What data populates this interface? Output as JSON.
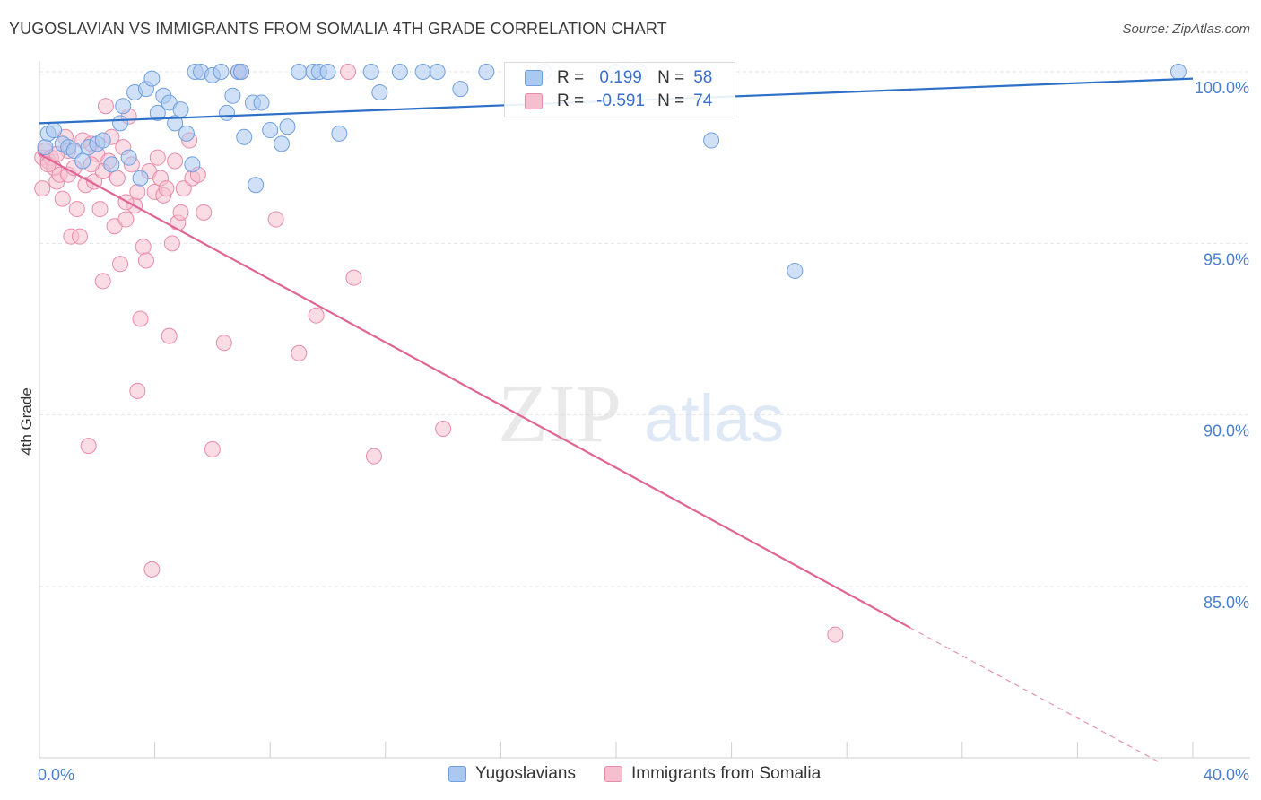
{
  "header": {
    "title": "YUGOSLAVIAN VS IMMIGRANTS FROM SOMALIA 4TH GRADE CORRELATION CHART",
    "source": "Source: ZipAtlas.com"
  },
  "watermark": {
    "zip": "ZIP",
    "atlas": "atlas"
  },
  "legend": {
    "rows": [
      {
        "r_label": "R =",
        "r_value": "0.199",
        "n_label": "N =",
        "n_value": "58"
      },
      {
        "r_label": "R =",
        "r_value": "-0.591",
        "n_label": "N =",
        "n_value": "74"
      }
    ]
  },
  "colors": {
    "blue_fill": "#aac8f0",
    "blue_stroke": "#6f9fe0",
    "blue_line": "#2e6fc8",
    "pink_fill": "#f6bfd0",
    "pink_stroke": "#e98aaa",
    "pink_line": "#e06594",
    "tick_text": "#4a7fd0"
  },
  "chart_data": {
    "type": "scatter",
    "title": "YUGOSLAVIAN VS IMMIGRANTS FROM SOMALIA 4TH GRADE CORRELATION CHART",
    "xlabel": "",
    "ylabel": "4th Grade",
    "xlim": [
      0,
      40
    ],
    "ylim": [
      80.3,
      100.8
    ],
    "x_ticks": [
      {
        "value": 0,
        "label": "0.0%"
      },
      {
        "value": 40,
        "label": "40.0%"
      }
    ],
    "x_minor_ticks": [
      0,
      4,
      8,
      12,
      16,
      20,
      24,
      28,
      32,
      36,
      40
    ],
    "y_ticks": [
      {
        "value": 100,
        "label": "100.0%"
      },
      {
        "value": 95,
        "label": "95.0%"
      },
      {
        "value": 90,
        "label": "90.0%"
      },
      {
        "value": 85,
        "label": "85.0%"
      }
    ],
    "grid": true,
    "legend_position": "top-center",
    "series": [
      {
        "name": "Yugoslavians",
        "trend": {
          "x0": 0,
          "y0": 98.5,
          "x1": 40,
          "y1": 99.8,
          "dashed_from": null
        },
        "points": [
          [
            0.2,
            97.8
          ],
          [
            0.3,
            98.2
          ],
          [
            0.5,
            98.3
          ],
          [
            0.8,
            97.9
          ],
          [
            1.0,
            97.8
          ],
          [
            1.2,
            97.7
          ],
          [
            1.5,
            97.4
          ],
          [
            1.7,
            97.8
          ],
          [
            2.0,
            97.9
          ],
          [
            2.2,
            98.0
          ],
          [
            2.5,
            97.3
          ],
          [
            2.8,
            98.5
          ],
          [
            2.9,
            99.0
          ],
          [
            3.1,
            97.5
          ],
          [
            3.3,
            99.4
          ],
          [
            3.5,
            96.9
          ],
          [
            3.7,
            99.5
          ],
          [
            3.9,
            99.8
          ],
          [
            4.1,
            98.8
          ],
          [
            4.3,
            99.3
          ],
          [
            4.5,
            99.1
          ],
          [
            4.7,
            98.5
          ],
          [
            4.9,
            98.9
          ],
          [
            5.1,
            98.2
          ],
          [
            5.3,
            97.3
          ],
          [
            5.4,
            100.0
          ],
          [
            5.6,
            100.0
          ],
          [
            6.0,
            99.9
          ],
          [
            6.3,
            100.0
          ],
          [
            6.5,
            98.8
          ],
          [
            6.7,
            99.3
          ],
          [
            6.9,
            100.0
          ],
          [
            7.0,
            100.0
          ],
          [
            7.1,
            98.1
          ],
          [
            7.4,
            99.1
          ],
          [
            7.7,
            99.1
          ],
          [
            7.5,
            96.7
          ],
          [
            8.0,
            98.3
          ],
          [
            8.4,
            97.9
          ],
          [
            8.6,
            98.4
          ],
          [
            9.0,
            100.0
          ],
          [
            9.5,
            100.0
          ],
          [
            9.7,
            100.0
          ],
          [
            10.0,
            100.0
          ],
          [
            10.4,
            98.2
          ],
          [
            11.5,
            100.0
          ],
          [
            11.8,
            99.4
          ],
          [
            12.5,
            100.0
          ],
          [
            13.3,
            100.0
          ],
          [
            13.8,
            100.0
          ],
          [
            14.6,
            99.5
          ],
          [
            15.5,
            100.0
          ],
          [
            17.5,
            100.0
          ],
          [
            20.0,
            100.0
          ],
          [
            20.8,
            100.0
          ],
          [
            23.3,
            98.0
          ],
          [
            26.2,
            94.2
          ],
          [
            39.5,
            100.0
          ]
        ]
      },
      {
        "name": "Immigrants from Somalia",
        "trend": {
          "x0": 0,
          "y0": 97.6,
          "x1": 30.2,
          "y1": 83.8,
          "dashed_to_x": 38.8,
          "dashed_to_y": 79.9
        },
        "points": [
          [
            0.1,
            97.5
          ],
          [
            0.1,
            96.6
          ],
          [
            0.2,
            97.7
          ],
          [
            0.3,
            97.4
          ],
          [
            0.4,
            97.5
          ],
          [
            0.5,
            97.2
          ],
          [
            0.6,
            96.8
          ],
          [
            0.7,
            97.0
          ],
          [
            0.8,
            96.3
          ],
          [
            0.9,
            98.1
          ],
          [
            1.0,
            97.0
          ],
          [
            1.1,
            95.2
          ],
          [
            1.2,
            97.2
          ],
          [
            1.3,
            96.0
          ],
          [
            1.4,
            95.2
          ],
          [
            1.5,
            98.0
          ],
          [
            1.6,
            96.7
          ],
          [
            1.7,
            89.1
          ],
          [
            1.8,
            97.9
          ],
          [
            1.9,
            96.8
          ],
          [
            2.0,
            97.6
          ],
          [
            2.1,
            96.0
          ],
          [
            2.2,
            93.9
          ],
          [
            2.3,
            99.0
          ],
          [
            2.4,
            97.4
          ],
          [
            2.5,
            98.1
          ],
          [
            2.6,
            95.5
          ],
          [
            2.7,
            96.9
          ],
          [
            2.8,
            94.4
          ],
          [
            2.9,
            97.8
          ],
          [
            3.0,
            95.7
          ],
          [
            3.1,
            98.7
          ],
          [
            3.2,
            97.3
          ],
          [
            3.3,
            96.1
          ],
          [
            3.4,
            96.5
          ],
          [
            3.5,
            92.8
          ],
          [
            3.6,
            94.9
          ],
          [
            3.7,
            94.5
          ],
          [
            3.8,
            97.1
          ],
          [
            3.9,
            85.5
          ],
          [
            4.0,
            96.5
          ],
          [
            4.1,
            97.5
          ],
          [
            4.2,
            96.9
          ],
          [
            4.3,
            96.4
          ],
          [
            4.4,
            96.6
          ],
          [
            4.5,
            92.3
          ],
          [
            4.6,
            95.0
          ],
          [
            4.7,
            97.4
          ],
          [
            4.8,
            95.6
          ],
          [
            4.9,
            95.9
          ],
          [
            5.0,
            96.6
          ],
          [
            5.2,
            98.0
          ],
          [
            5.3,
            96.9
          ],
          [
            5.7,
            95.9
          ],
          [
            5.5,
            97.0
          ],
          [
            3.4,
            90.7
          ],
          [
            6.0,
            89.0
          ],
          [
            6.4,
            92.1
          ],
          [
            6.9,
            100.0
          ],
          [
            7.0,
            100.0
          ],
          [
            8.2,
            95.7
          ],
          [
            9.0,
            91.8
          ],
          [
            9.6,
            92.9
          ],
          [
            10.7,
            100.0
          ],
          [
            10.9,
            94.0
          ],
          [
            11.6,
            88.8
          ],
          [
            14.0,
            89.6
          ],
          [
            27.6,
            83.6
          ],
          [
            0.3,
            97.3
          ],
          [
            1.0,
            97.7
          ],
          [
            2.2,
            97.1
          ],
          [
            0.6,
            97.6
          ],
          [
            1.8,
            97.3
          ],
          [
            3.0,
            96.2
          ]
        ]
      }
    ]
  },
  "bottom_legend": {
    "items": [
      {
        "label": "Yugoslavians"
      },
      {
        "label": "Immigrants from Somalia"
      }
    ]
  }
}
